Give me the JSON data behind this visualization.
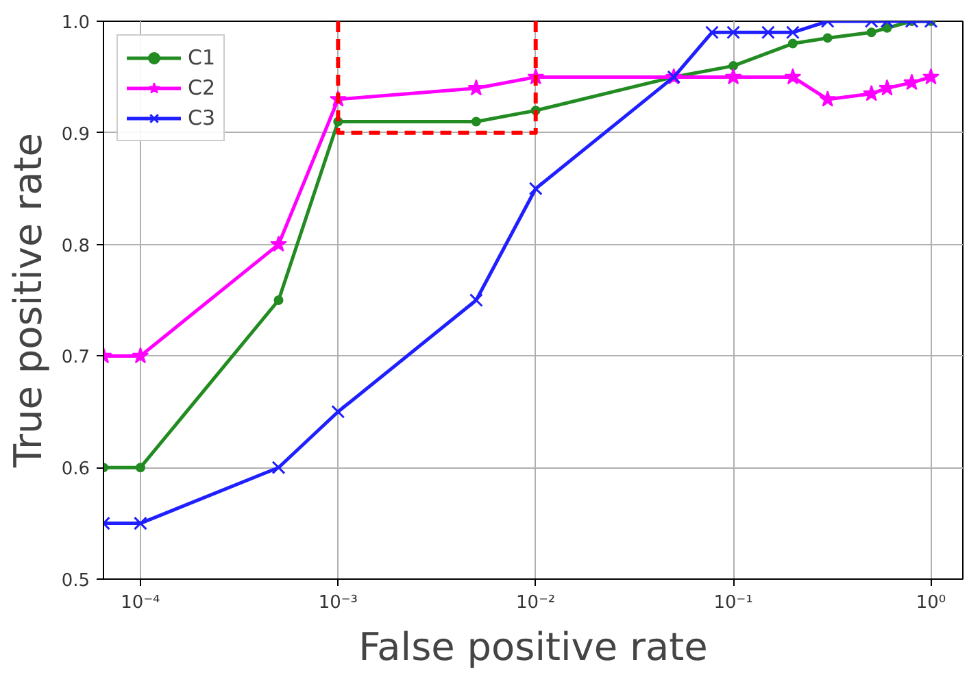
{
  "chart_data": {
    "type": "line",
    "xlabel": "False positive rate",
    "ylabel": "True positive rate",
    "log": "x",
    "xlim": [
      6.5e-05,
      1.45
    ],
    "ylim": [
      0.5,
      1.0
    ],
    "xticks": [
      {
        "value": 0.0001,
        "label": "10⁻⁴"
      },
      {
        "value": 0.001,
        "label": "10⁻³"
      },
      {
        "value": 0.01,
        "label": "10⁻²"
      },
      {
        "value": 0.1,
        "label": "10⁻¹"
      },
      {
        "value": 1,
        "label": "10⁰"
      }
    ],
    "yticks": [
      {
        "value": 0.5,
        "label": "0.5"
      },
      {
        "value": 0.6,
        "label": "0.6"
      },
      {
        "value": 0.7,
        "label": "0.7"
      },
      {
        "value": 0.8,
        "label": "0.8"
      },
      {
        "value": 0.9,
        "label": "0.9"
      },
      {
        "value": 1,
        "label": "1.0"
      }
    ],
    "grid": true,
    "legend": "top left",
    "series": [
      {
        "name": "C1",
        "color": "#228b22",
        "marker": "circle",
        "x": [
          6.5e-05,
          0.0001,
          0.0005,
          0.001,
          0.005,
          0.01,
          0.05,
          0.1,
          0.2,
          0.3,
          0.5,
          0.6,
          0.8,
          1
        ],
        "values": [
          0.6,
          0.6,
          0.75,
          0.91,
          0.91,
          0.92,
          0.95,
          0.96,
          0.98,
          0.985,
          0.99,
          0.994,
          1.0,
          1.0
        ]
      },
      {
        "name": "C2",
        "color": "#ff00ff",
        "marker": "star",
        "x": [
          6.5e-05,
          0.0001,
          0.0005,
          0.001,
          0.005,
          0.01,
          0.05,
          0.1,
          0.2,
          0.3,
          0.5,
          0.6,
          0.8,
          1
        ],
        "values": [
          0.7,
          0.7,
          0.8,
          0.93,
          0.94,
          0.95,
          0.95,
          0.95,
          0.95,
          0.93,
          0.935,
          0.94,
          0.945,
          0.95
        ]
      },
      {
        "name": "C3",
        "color": "#1f1fff",
        "marker": "cross",
        "x": [
          6.5e-05,
          0.0001,
          0.0005,
          0.001,
          0.005,
          0.01,
          0.05,
          0.078,
          0.1,
          0.15,
          0.2,
          0.3,
          0.5,
          0.6,
          0.8,
          1
        ],
        "values": [
          0.55,
          0.55,
          0.6,
          0.65,
          0.75,
          0.85,
          0.95,
          0.99,
          0.99,
          0.99,
          0.99,
          1.0,
          1.0,
          1.0,
          1.0,
          1.0
        ]
      },
      {
        "color": "#ff0000",
        "marker": "none",
        "line_style": "dashed",
        "x": [
          0.001,
          0.001,
          0.01,
          0.01
        ],
        "values": [
          1.0,
          0.9,
          0.9,
          1.0
        ]
      }
    ]
  }
}
